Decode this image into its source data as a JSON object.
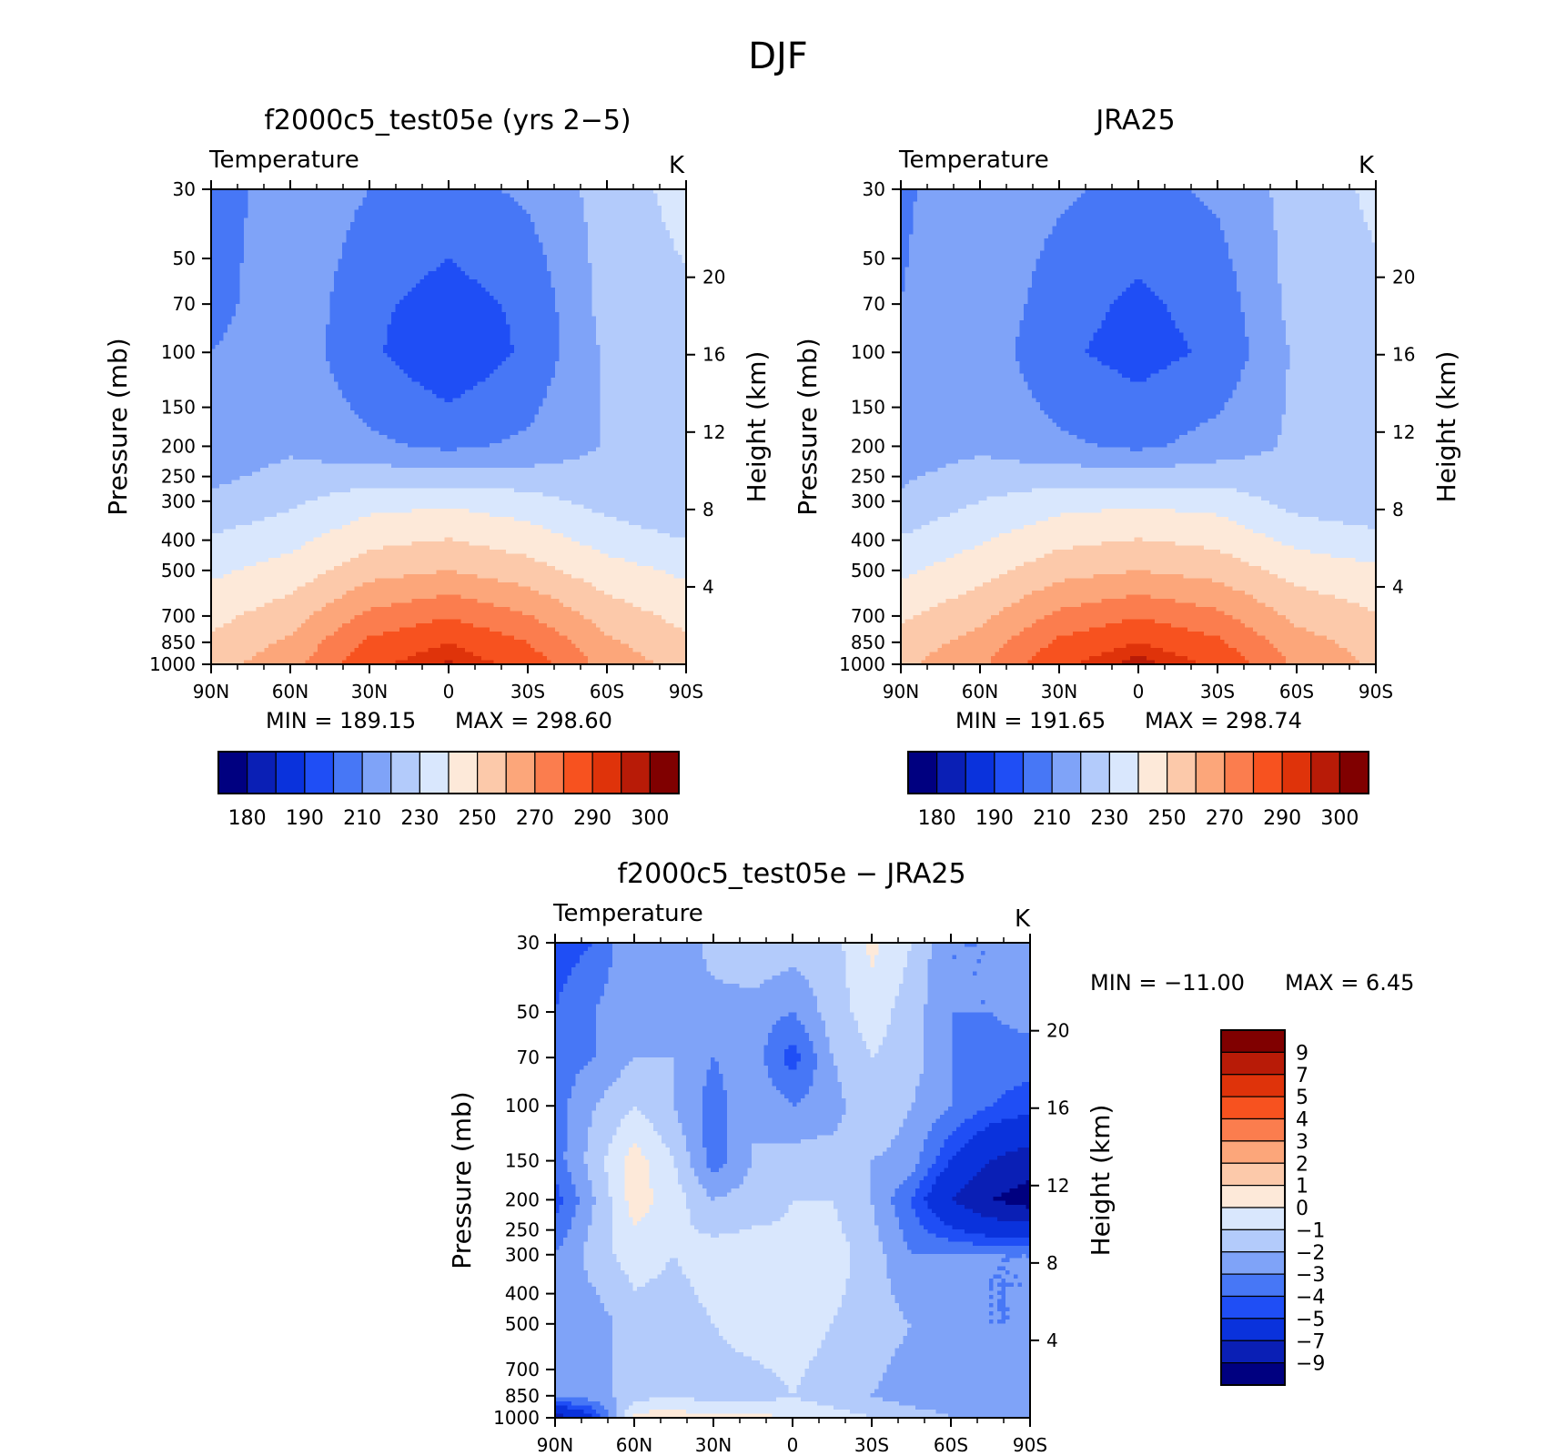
{
  "figure": {
    "title": "DJF"
  },
  "colors": {
    "abs_levels": [
      "#000080",
      "#0a1fb5",
      "#0a32dc",
      "#1f4ef5",
      "#4777f6",
      "#7fa3f8",
      "#b3cbfb",
      "#d9e7fd",
      "#fde9d9",
      "#fcc9aa",
      "#fca67a",
      "#fb7d4e",
      "#f7521f",
      "#df330a",
      "#b81b07",
      "#800000"
    ],
    "diff_levels": [
      "#000080",
      "#0a1fb5",
      "#0a32dc",
      "#1f4ef5",
      "#4777f6",
      "#7fa3f8",
      "#b3cbfb",
      "#d9e7fd",
      "#fde9d9",
      "#fcc9aa",
      "#fca67a",
      "#fb7d4e",
      "#f7521f",
      "#df330a",
      "#b81b07",
      "#800000"
    ]
  },
  "chart_data": [
    {
      "type": "heatmap",
      "title": "f2000c5_test05e (yrs 2−5)",
      "variable_label": "Temperature",
      "units": "K",
      "ylabel": "Pressure (mb)",
      "ylabel_right": "Height (km)",
      "x_ticks": [
        "90N",
        "60N",
        "30N",
        "0",
        "30S",
        "60S",
        "90S"
      ],
      "y_ticks": [
        30,
        50,
        70,
        100,
        150,
        200,
        250,
        300,
        400,
        500,
        700,
        850,
        1000
      ],
      "height_ticks": [
        4,
        8,
        12,
        16,
        20
      ],
      "min_label": "MIN  =  189.15",
      "max_label": "MAX  =  298.60",
      "colorbar_labels": [
        "180",
        "190",
        "210",
        "230",
        "250",
        "270",
        "290",
        "300"
      ],
      "field": {
        "lat": [
          90,
          60,
          30,
          0,
          -30,
          -60,
          -90
        ],
        "pressure": [
          30,
          70,
          100,
          200,
          300,
          500,
          850,
          1000
        ],
        "values": [
          [
            203,
            218,
            210,
            206,
            212,
            224,
            234
          ],
          [
            206,
            218,
            202,
            196,
            202,
            224,
            228
          ],
          [
            210,
            216,
            202,
            191,
            202,
            222,
            226
          ],
          [
            212,
            218,
            212,
            208,
            212,
            221,
            222
          ],
          [
            222,
            228,
            236,
            238,
            234,
            226,
            220
          ],
          [
            238,
            244,
            256,
            260,
            254,
            244,
            238
          ],
          [
            252,
            262,
            282,
            290,
            280,
            262,
            252
          ],
          [
            256,
            266,
            288,
            296,
            286,
            266,
            256
          ]
        ]
      }
    },
    {
      "type": "heatmap",
      "title": "JRA25",
      "variable_label": "Temperature",
      "units": "K",
      "ylabel": "Pressure (mb)",
      "ylabel_right": "Height (km)",
      "x_ticks": [
        "90N",
        "60N",
        "30N",
        "0",
        "30S",
        "60S",
        "90S"
      ],
      "y_ticks": [
        30,
        50,
        70,
        100,
        150,
        200,
        250,
        300,
        400,
        500,
        700,
        850,
        1000
      ],
      "height_ticks": [
        4,
        8,
        12,
        16,
        20
      ],
      "min_label": "MIN  =  191.65",
      "max_label": "MAX  =  298.74",
      "colorbar_labels": [
        "180",
        "190",
        "210",
        "230",
        "250",
        "270",
        "290",
        "300"
      ],
      "field": {
        "lat": [
          90,
          60,
          30,
          0,
          -30,
          -60,
          -90
        ],
        "pressure": [
          30,
          70,
          100,
          200,
          300,
          500,
          850,
          1000
        ],
        "values": [
          [
            208,
            218,
            212,
            206,
            212,
            224,
            232
          ],
          [
            210,
            218,
            204,
            198,
            204,
            224,
            228
          ],
          [
            212,
            216,
            202,
            196,
            202,
            222,
            226
          ],
          [
            214,
            218,
            212,
            208,
            214,
            222,
            222
          ],
          [
            222,
            230,
            236,
            238,
            236,
            226,
            222
          ],
          [
            238,
            246,
            256,
            260,
            256,
            246,
            242
          ],
          [
            254,
            264,
            282,
            290,
            282,
            264,
            256
          ],
          [
            258,
            268,
            288,
            298,
            288,
            268,
            258
          ]
        ]
      }
    },
    {
      "type": "heatmap",
      "title": "f2000c5_test05e − JRA25",
      "variable_label": "Temperature",
      "units": "K",
      "ylabel": "Pressure (mb)",
      "ylabel_right": "Height (km)",
      "x_ticks": [
        "90N",
        "60N",
        "30N",
        "0",
        "30S",
        "60S",
        "90S"
      ],
      "y_ticks": [
        30,
        50,
        70,
        100,
        150,
        200,
        250,
        300,
        400,
        500,
        700,
        850,
        1000
      ],
      "height_ticks": [
        4,
        8,
        12,
        16,
        20
      ],
      "min_label": "MIN  =  −11.00",
      "max_label": "MAX  =     6.45",
      "colorbar_labels": [
        "9",
        "7",
        "5",
        "4",
        "3",
        "2",
        "1",
        "0",
        "−1",
        "−2",
        "−3",
        "−4",
        "−5",
        "−7",
        "−9"
      ],
      "field": {
        "lat": [
          90,
          75,
          60,
          45,
          30,
          15,
          0,
          -15,
          -30,
          -45,
          -60,
          -75,
          -90
        ],
        "pressure": [
          30,
          50,
          70,
          100,
          150,
          200,
          300,
          500,
          850,
          1000
        ],
        "values": [
          [
            -4.5,
            -4,
            -2,
            -3,
            -1.5,
            -1,
            -1.5,
            -1.5,
            0.3,
            -1,
            -3,
            -3,
            -2
          ],
          [
            -4,
            -3,
            -2,
            -2.5,
            -2.5,
            -2.5,
            -3,
            -1.5,
            -0.5,
            -1.5,
            -3,
            -3,
            -2.5
          ],
          [
            -3.5,
            -3,
            -2,
            -2,
            -3,
            -2.5,
            -4.5,
            -2,
            -1,
            -1.5,
            -3,
            -3.5,
            -3.5
          ],
          [
            -3.5,
            -2,
            -1,
            -2,
            -3.5,
            -2,
            -3,
            -2.5,
            -1,
            -2,
            -3,
            -4,
            -4.5
          ],
          [
            -3.5,
            -1.5,
            0.5,
            -1,
            -3.5,
            -2,
            -1.5,
            -1.5,
            -2,
            -2.5,
            -5,
            -7,
            -8
          ],
          [
            -4.5,
            -2,
            0.5,
            -0.5,
            -2,
            -1.5,
            -1,
            -1,
            -2,
            -4,
            -7,
            -9,
            -10
          ],
          [
            -3,
            -1.5,
            -0.5,
            -1,
            -0.5,
            -0.5,
            -0.8,
            -0.5,
            -1.5,
            -3,
            -3,
            -3,
            -3
          ],
          [
            -2.5,
            -2.5,
            -1.5,
            -1.5,
            -1,
            -0.5,
            -0.5,
            -1,
            -1.5,
            -2,
            -2.5,
            -3,
            -3
          ],
          [
            -2.5,
            -2.5,
            -1.5,
            -1,
            -1.5,
            -1.5,
            -1,
            -1.5,
            -2,
            -2.5,
            -2.5,
            -3,
            -2.5
          ],
          [
            -8,
            -5,
            0.5,
            0.5,
            0.3,
            0.5,
            -0.3,
            -0.5,
            -1,
            -1.5,
            -2,
            -2,
            -2
          ]
        ]
      }
    }
  ]
}
